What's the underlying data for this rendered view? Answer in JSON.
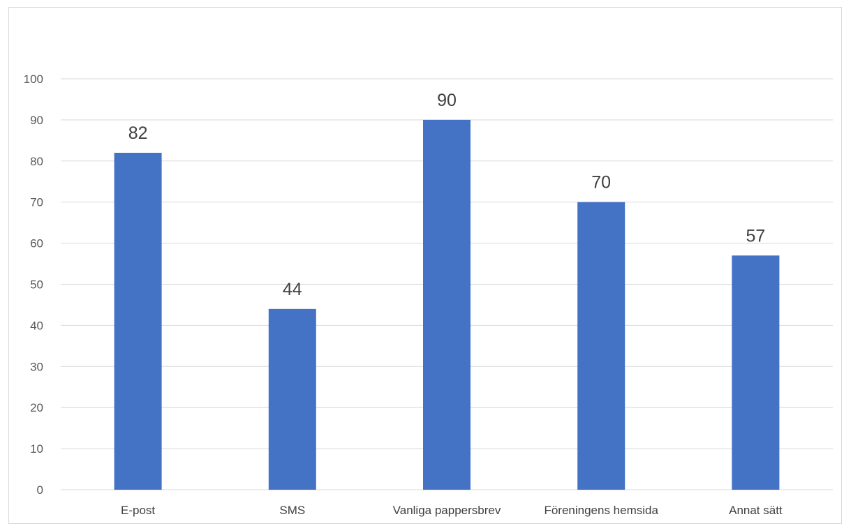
{
  "chart_data": {
    "type": "bar",
    "title": "",
    "xlabel": "",
    "ylabel": "",
    "categories": [
      "E-post",
      "SMS",
      "Vanliga pappersbrev",
      "Föreningens hemsida",
      "Annat sätt"
    ],
    "values": [
      82,
      44,
      90,
      70,
      57
    ],
    "data_labels": [
      "82",
      "44",
      "90",
      "70",
      "57"
    ],
    "ylim": [
      0,
      100
    ],
    "yticks": [
      0,
      10,
      20,
      30,
      40,
      50,
      60,
      70,
      80,
      90,
      100
    ],
    "ytick_labels": [
      "0",
      "10",
      "20",
      "30",
      "40",
      "50",
      "60",
      "70",
      "80",
      "90",
      "100"
    ],
    "grid": true,
    "legend": "none",
    "bar_color": "#4472c4",
    "grid_color": "#d9d9d9"
  }
}
